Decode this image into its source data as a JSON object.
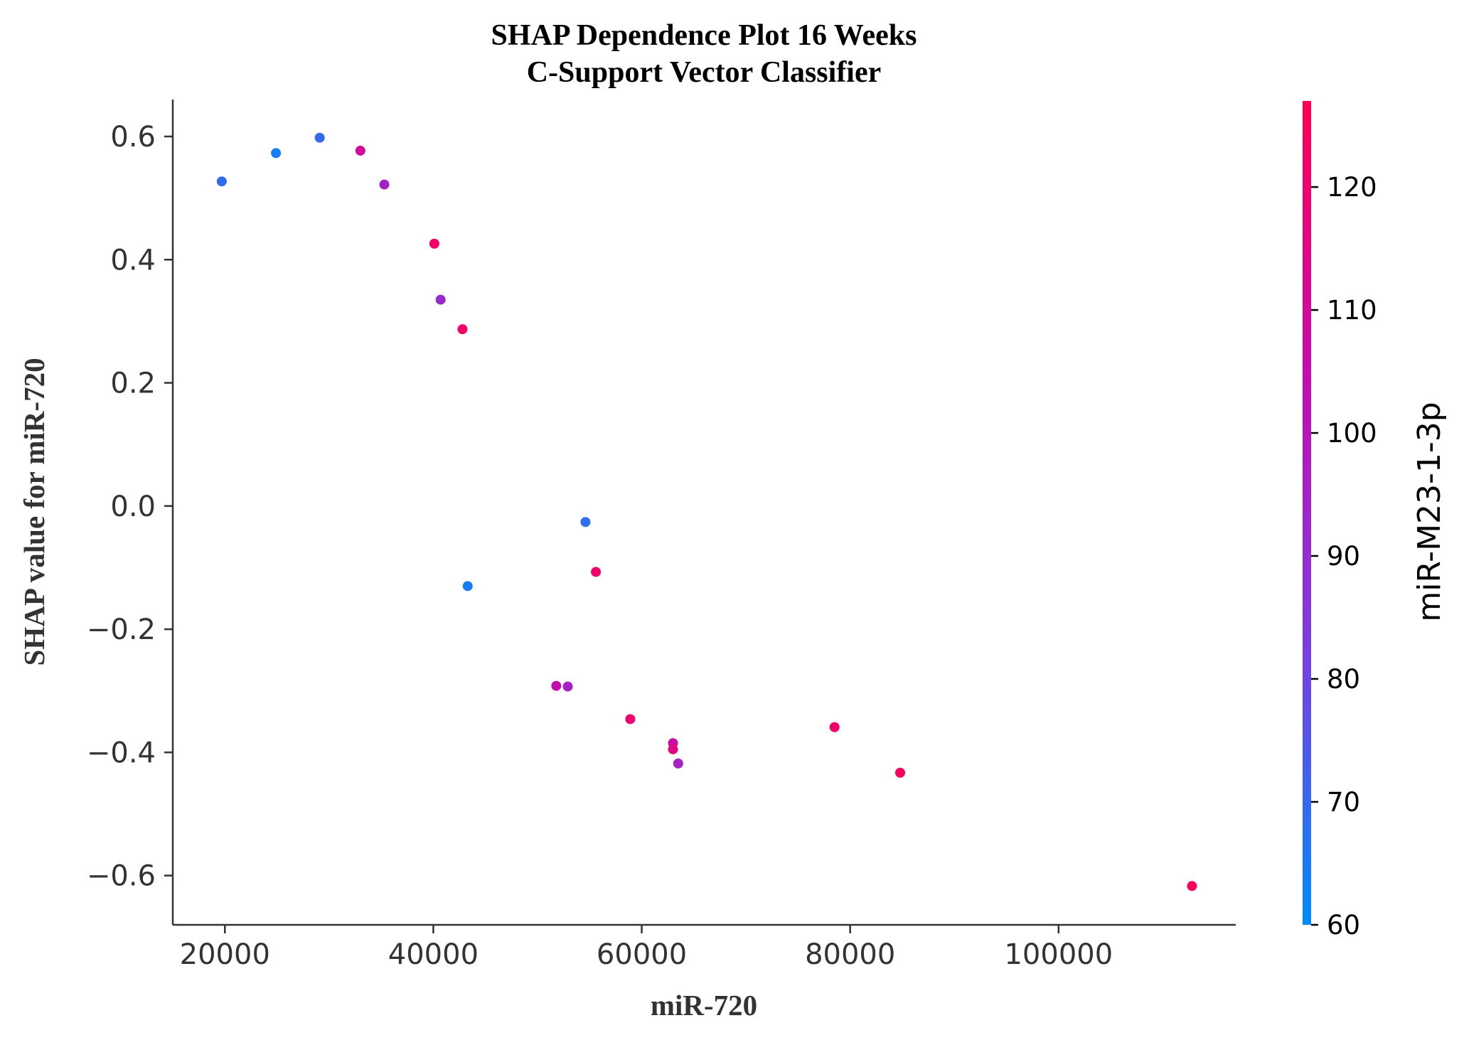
{
  "chart_data": {
    "type": "scatter",
    "title_lines": [
      "SHAP Dependence Plot 16 Weeks",
      "C-Support Vector Classifier"
    ],
    "xlabel": "miR-720",
    "ylabel": "SHAP value for miR-720",
    "xlim": [
      15000,
      117000
    ],
    "ylim": [
      -0.68,
      0.66
    ],
    "x_ticks": [
      20000,
      40000,
      60000,
      80000,
      100000
    ],
    "x_tick_labels": [
      "20000",
      "40000",
      "60000",
      "80000",
      "100000"
    ],
    "y_ticks": [
      0.6,
      0.4,
      0.2,
      0.0,
      -0.2,
      -0.4,
      -0.6
    ],
    "y_tick_labels": [
      "0.6",
      "0.4",
      "0.2",
      "0.0",
      "−0.2",
      "−0.4",
      "−0.6"
    ],
    "colorbar": {
      "label": "miR-M23-1-3p",
      "range": [
        60,
        127
      ],
      "ticks": [
        60,
        70,
        80,
        90,
        100,
        110,
        120
      ],
      "tick_labels": [
        "60",
        "70",
        "80",
        "90",
        "100",
        "110",
        "120"
      ],
      "colormap": [
        "#008afb",
        "#7a3fe0",
        "#c20eb0",
        "#ff0052"
      ]
    },
    "points": [
      {
        "x": 19700,
        "y": 0.527,
        "c": 69
      },
      {
        "x": 24900,
        "y": 0.573,
        "c": 64
      },
      {
        "x": 29100,
        "y": 0.598,
        "c": 70
      },
      {
        "x": 33000,
        "y": 0.577,
        "c": 110
      },
      {
        "x": 35300,
        "y": 0.522,
        "c": 96
      },
      {
        "x": 40100,
        "y": 0.426,
        "c": 122
      },
      {
        "x": 40700,
        "y": 0.335,
        "c": 92
      },
      {
        "x": 42800,
        "y": 0.287,
        "c": 122
      },
      {
        "x": 43300,
        "y": -0.13,
        "c": 64
      },
      {
        "x": 51800,
        "y": -0.292,
        "c": 106
      },
      {
        "x": 52900,
        "y": -0.293,
        "c": 96
      },
      {
        "x": 54600,
        "y": -0.026,
        "c": 68
      },
      {
        "x": 55600,
        "y": -0.107,
        "c": 122
      },
      {
        "x": 58900,
        "y": -0.346,
        "c": 120
      },
      {
        "x": 63000,
        "y": -0.385,
        "c": 108
      },
      {
        "x": 63000,
        "y": -0.395,
        "c": 116
      },
      {
        "x": 63500,
        "y": -0.418,
        "c": 96
      },
      {
        "x": 78500,
        "y": -0.359,
        "c": 122
      },
      {
        "x": 84800,
        "y": -0.433,
        "c": 124
      },
      {
        "x": 112800,
        "y": -0.617,
        "c": 124
      }
    ]
  }
}
